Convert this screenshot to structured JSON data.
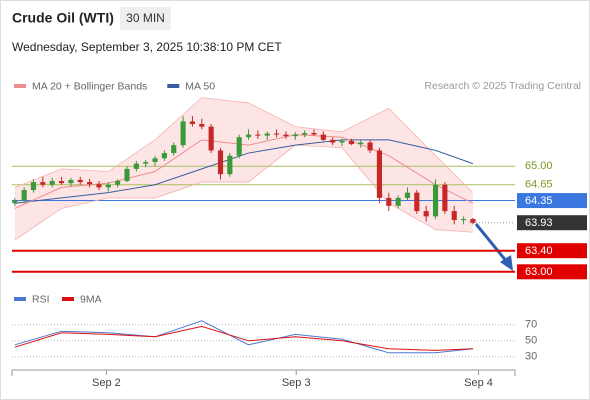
{
  "chart_data": {
    "type": "candlestick",
    "title": "Crude Oil (WTI)",
    "interval": "30 MIN",
    "subtitle": "Wednesday, September 3, 2025 10:38:10 PM CET",
    "credit": "Research © 2025 Trading Central",
    "legend": [
      {
        "name": "MA 20 + Bollinger Bands",
        "color": "#f08c8c"
      },
      {
        "name": "MA 50",
        "color": "#3a5f9f"
      }
    ],
    "ylim": [
      62.75,
      66.35
    ],
    "xlim": [
      -0.3,
      53.5
    ],
    "xticks": [
      {
        "value": 9.8,
        "label": "Sep 2"
      },
      {
        "value": 30.1,
        "label": "Sep 3"
      },
      {
        "value": 49.6,
        "label": "Sep 4"
      }
    ],
    "up_color": "#3a9a3a",
    "down_color": "#c62828",
    "candles": [
      [
        64.3,
        64.4,
        64.25,
        64.35
      ],
      [
        64.35,
        64.6,
        64.3,
        64.55
      ],
      [
        64.55,
        64.75,
        64.5,
        64.7
      ],
      [
        64.7,
        64.8,
        64.6,
        64.65
      ],
      [
        64.65,
        64.78,
        64.6,
        64.72
      ],
      [
        64.72,
        64.8,
        64.65,
        64.68
      ],
      [
        64.68,
        64.78,
        64.62,
        64.74
      ],
      [
        64.74,
        64.8,
        64.65,
        64.7
      ],
      [
        64.7,
        64.76,
        64.6,
        64.66
      ],
      [
        64.66,
        64.72,
        64.55,
        64.6
      ],
      [
        64.6,
        64.7,
        64.52,
        64.65
      ],
      [
        64.65,
        64.75,
        64.6,
        64.72
      ],
      [
        64.72,
        65.0,
        64.7,
        64.95
      ],
      [
        64.95,
        65.1,
        64.9,
        65.05
      ],
      [
        65.05,
        65.12,
        64.98,
        65.08
      ],
      [
        65.08,
        65.2,
        65.0,
        65.15
      ],
      [
        65.15,
        65.3,
        65.1,
        65.25
      ],
      [
        65.25,
        65.45,
        65.2,
        65.4
      ],
      [
        65.4,
        65.95,
        65.35,
        65.85
      ],
      [
        65.85,
        65.95,
        65.75,
        65.8
      ],
      [
        65.8,
        65.9,
        65.7,
        65.75
      ],
      [
        65.75,
        65.8,
        65.25,
        65.3
      ],
      [
        65.3,
        65.35,
        64.75,
        64.85
      ],
      [
        64.85,
        65.25,
        64.8,
        65.2
      ],
      [
        65.2,
        65.6,
        65.15,
        65.55
      ],
      [
        65.55,
        65.7,
        65.5,
        65.6
      ],
      [
        65.6,
        65.68,
        65.52,
        65.58
      ],
      [
        65.58,
        65.66,
        65.5,
        65.62
      ],
      [
        65.62,
        65.7,
        65.55,
        65.6
      ],
      [
        65.6,
        65.66,
        65.52,
        65.57
      ],
      [
        65.57,
        65.65,
        65.5,
        65.6
      ],
      [
        65.6,
        65.68,
        65.55,
        65.63
      ],
      [
        65.63,
        65.7,
        65.58,
        65.6
      ],
      [
        65.6,
        65.66,
        65.48,
        65.5
      ],
      [
        65.5,
        65.55,
        65.4,
        65.45
      ],
      [
        65.45,
        65.52,
        65.38,
        65.48
      ],
      [
        65.48,
        65.52,
        65.4,
        65.42
      ],
      [
        65.42,
        65.5,
        65.35,
        65.45
      ],
      [
        65.45,
        65.5,
        65.25,
        65.3
      ],
      [
        65.3,
        65.35,
        64.3,
        64.4
      ],
      [
        64.4,
        64.5,
        64.15,
        64.25
      ],
      [
        64.25,
        64.45,
        64.2,
        64.4
      ],
      [
        64.4,
        64.6,
        64.35,
        64.5
      ],
      [
        64.5,
        64.55,
        64.1,
        64.15
      ],
      [
        64.15,
        64.25,
        63.95,
        64.05
      ],
      [
        64.05,
        64.75,
        64.0,
        64.65
      ],
      [
        64.65,
        64.7,
        64.1,
        64.15
      ],
      [
        64.15,
        64.25,
        63.9,
        63.98
      ],
      [
        63.98,
        64.05,
        63.9,
        64.0
      ],
      [
        64.0,
        64.02,
        63.9,
        63.93
      ]
    ],
    "indicator_x": [
      0,
      5,
      10,
      15,
      20,
      25,
      30,
      35,
      40,
      45,
      49
    ],
    "ma20": [
      64.2,
      64.6,
      64.68,
      64.9,
      65.5,
      65.4,
      65.6,
      65.55,
      65.2,
      64.65,
      64.3
    ],
    "ma50": [
      64.3,
      64.4,
      64.5,
      64.65,
      64.95,
      65.25,
      65.4,
      65.5,
      65.5,
      65.3,
      65.05
    ],
    "bb_upper": [
      64.6,
      64.95,
      64.9,
      65.5,
      66.3,
      66.2,
      65.75,
      65.65,
      66.1,
      65.2,
      64.5
    ],
    "bb_lower": [
      63.6,
      64.2,
      64.4,
      64.4,
      64.7,
      64.7,
      65.4,
      65.35,
      64.3,
      63.8,
      63.75
    ],
    "levels": [
      {
        "value": 65.0,
        "label": "65.00",
        "kind": "resistance"
      },
      {
        "value": 64.65,
        "label": "64.65",
        "kind": "resistance"
      },
      {
        "value": 64.35,
        "label": "64.35",
        "kind": "pivot"
      },
      {
        "value": 63.93,
        "label": "63.93",
        "kind": "last"
      },
      {
        "value": 63.4,
        "label": "63.40",
        "kind": "support"
      },
      {
        "value": 63.0,
        "label": "63.00",
        "kind": "support"
      }
    ],
    "rsi_legend": [
      {
        "name": "RSI",
        "color": "#4a78d0"
      },
      {
        "name": "9MA",
        "color": "#e01010"
      }
    ],
    "rsi_lim": [
      16,
      86
    ],
    "rsi_ticks": [
      70,
      50,
      30
    ],
    "rsi": [
      45,
      62,
      60,
      55,
      75,
      45,
      58,
      52,
      35,
      35,
      40
    ],
    "rsi_ma": [
      42,
      60,
      58,
      55,
      68,
      50,
      55,
      50,
      40,
      38,
      40
    ]
  }
}
